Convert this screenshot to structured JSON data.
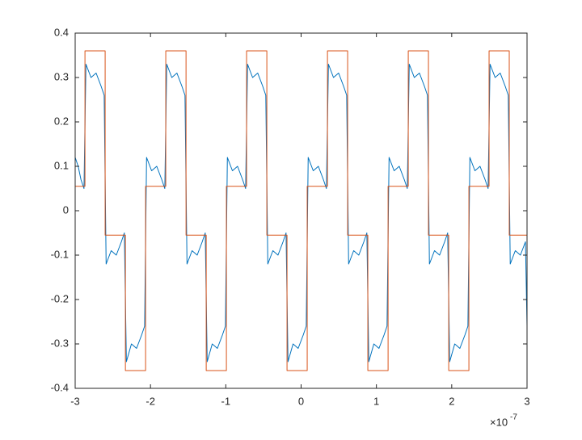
{
  "chart_data": {
    "type": "line",
    "xlim": [
      -3,
      3
    ],
    "ylim": [
      -0.4,
      0.4
    ],
    "xticks": [
      -3,
      -2,
      -1,
      0,
      1,
      2,
      3
    ],
    "yticks": [
      -0.4,
      -0.3,
      -0.2,
      -0.1,
      0,
      0.1,
      0.2,
      0.3,
      0.4
    ],
    "x_exponent_label": {
      "base": "×10",
      "exponent": "-7"
    },
    "grid": false,
    "box": true,
    "series": [
      {
        "color": "#0072BD",
        "x": [
          -3.0,
          -2.96,
          -2.923,
          -2.883,
          -2.857,
          -2.79,
          -2.722,
          -2.655,
          -2.615,
          -2.589,
          -2.522,
          -2.454,
          -2.387,
          -2.347,
          -2.32,
          -2.253,
          -2.185,
          -2.118,
          -2.078,
          -2.052,
          -1.985,
          -1.917,
          -1.85,
          -1.81,
          -1.784,
          -1.717,
          -1.649,
          -1.582,
          -1.542,
          -1.515,
          -1.448,
          -1.38,
          -1.313,
          -1.273,
          -1.247,
          -1.18,
          -1.112,
          -1.045,
          -1.005,
          -0.979,
          -0.912,
          -0.844,
          -0.777,
          -0.737,
          -0.711,
          -0.644,
          -0.576,
          -0.509,
          -0.469,
          -0.442,
          -0.375,
          -0.307,
          -0.24,
          -0.2,
          -0.174,
          -0.107,
          -0.039,
          0.028,
          0.068,
          0.094,
          0.161,
          0.229,
          0.296,
          0.336,
          0.363,
          0.43,
          0.498,
          0.565,
          0.605,
          0.631,
          0.698,
          0.766,
          0.833,
          0.873,
          0.899,
          0.966,
          1.034,
          1.101,
          1.141,
          1.168,
          1.235,
          1.303,
          1.37,
          1.41,
          1.436,
          1.503,
          1.571,
          1.638,
          1.678,
          1.704,
          1.771,
          1.839,
          1.906,
          1.946,
          1.973,
          2.04,
          2.108,
          2.175,
          2.215,
          2.241,
          2.308,
          2.376,
          2.443,
          2.483,
          2.509,
          2.576,
          2.644,
          2.711,
          2.751,
          2.777,
          2.844,
          2.912,
          2.979,
          3.0
        ],
        "values": [
          0.12,
          0.1,
          0.07,
          0.05,
          0.33,
          0.3,
          0.31,
          0.28,
          0.26,
          -0.12,
          -0.09,
          -0.1,
          -0.07,
          -0.05,
          -0.34,
          -0.3,
          -0.31,
          -0.28,
          -0.26,
          0.12,
          0.09,
          0.1,
          0.07,
          0.05,
          0.33,
          0.3,
          0.31,
          0.28,
          0.26,
          -0.12,
          -0.09,
          -0.1,
          -0.07,
          -0.05,
          -0.34,
          -0.3,
          -0.31,
          -0.28,
          -0.26,
          0.12,
          0.09,
          0.1,
          0.07,
          0.05,
          0.33,
          0.3,
          0.31,
          0.28,
          0.26,
          -0.12,
          -0.09,
          -0.1,
          -0.07,
          -0.05,
          -0.34,
          -0.3,
          -0.31,
          -0.28,
          -0.26,
          0.12,
          0.09,
          0.1,
          0.07,
          0.05,
          0.33,
          0.3,
          0.31,
          0.28,
          0.26,
          -0.12,
          -0.09,
          -0.1,
          -0.07,
          -0.05,
          -0.34,
          -0.3,
          -0.31,
          -0.28,
          -0.26,
          0.12,
          0.09,
          0.1,
          0.07,
          0.05,
          0.33,
          0.3,
          0.31,
          0.28,
          0.26,
          -0.12,
          -0.09,
          -0.1,
          -0.07,
          -0.05,
          -0.34,
          -0.3,
          -0.31,
          -0.28,
          -0.26,
          0.12,
          0.09,
          0.1,
          0.07,
          0.05,
          0.33,
          0.3,
          0.31,
          0.28,
          0.26,
          -0.12,
          -0.09,
          -0.1,
          -0.07,
          -0.26
        ]
      },
      {
        "color": "#D95319",
        "x": [
          -3,
          -2.87,
          -2.87,
          -2.602,
          -2.602,
          -2.333,
          -2.333,
          -2.065,
          -2.065,
          -1.797,
          -1.797,
          -1.528,
          -1.528,
          -1.26,
          -1.26,
          -0.992,
          -0.992,
          -0.724,
          -0.724,
          -0.455,
          -0.455,
          -0.187,
          -0.187,
          0.081,
          0.081,
          0.35,
          0.35,
          0.618,
          0.618,
          0.886,
          0.886,
          1.155,
          1.155,
          1.423,
          1.423,
          1.691,
          1.691,
          1.96,
          1.96,
          2.228,
          2.228,
          2.496,
          2.496,
          2.764,
          2.764,
          3
        ],
        "values": [
          0.055,
          0.055,
          0.36,
          0.36,
          -0.055,
          -0.055,
          -0.36,
          -0.36,
          0.055,
          0.055,
          0.36,
          0.36,
          -0.055,
          -0.055,
          -0.36,
          -0.36,
          0.055,
          0.055,
          0.36,
          0.36,
          -0.055,
          -0.055,
          -0.36,
          -0.36,
          0.055,
          0.055,
          0.36,
          0.36,
          -0.055,
          -0.055,
          -0.36,
          -0.36,
          0.055,
          0.055,
          0.36,
          0.36,
          -0.055,
          -0.055,
          -0.36,
          -0.36,
          0.055,
          0.055,
          0.36,
          0.36,
          -0.055,
          -0.055
        ]
      }
    ]
  }
}
